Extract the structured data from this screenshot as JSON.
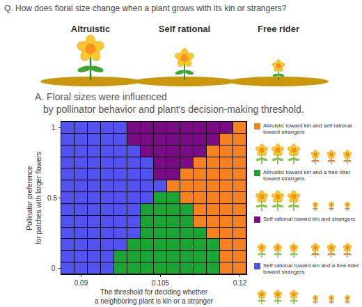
{
  "question": "Q. How does floral size change when a plant grows with its kin or strangers?",
  "behaviors": [
    "Altruistic",
    "Self rational",
    "Free rider"
  ],
  "chart_data": {
    "type": "heatmap",
    "title": "A. Floral sizes were influenced\nby pollinator behavior and plant's decision-making threshold.",
    "x_label": "The threshold for deciding whether\na neighboring plant is kin or a stranger",
    "y_label": "Pollinator preference\nfor patches with larger flowers",
    "x": [
      0.0875,
      0.09,
      0.0925,
      0.095,
      0.0975,
      0.1,
      0.1025,
      0.105,
      0.1075,
      0.11,
      0.1125,
      0.115,
      0.1175,
      0.12
    ],
    "y": [
      0,
      0.0833,
      0.1667,
      0.25,
      0.3333,
      0.4167,
      0.5,
      0.5833,
      0.6667,
      0.75,
      0.8333,
      0.9167,
      1
    ],
    "cells": [
      [
        4,
        4,
        4,
        4,
        2,
        2,
        2,
        2,
        2,
        2,
        2,
        2,
        1,
        1
      ],
      [
        4,
        4,
        4,
        4,
        2,
        2,
        2,
        2,
        2,
        2,
        2,
        2,
        1,
        1
      ],
      [
        4,
        4,
        4,
        4,
        4,
        2,
        2,
        2,
        2,
        2,
        2,
        2,
        1,
        1
      ],
      [
        4,
        4,
        4,
        4,
        4,
        4,
        2,
        2,
        2,
        2,
        2,
        1,
        1,
        1
      ],
      [
        4,
        4,
        4,
        4,
        4,
        4,
        2,
        2,
        2,
        2,
        1,
        1,
        1,
        1
      ],
      [
        4,
        4,
        4,
        4,
        4,
        4,
        2,
        2,
        2,
        2,
        1,
        1,
        1,
        1
      ],
      [
        4,
        4,
        4,
        4,
        4,
        4,
        4,
        2,
        2,
        1,
        1,
        1,
        1,
        1
      ],
      [
        4,
        4,
        4,
        4,
        4,
        4,
        4,
        4,
        1,
        1,
        1,
        1,
        1,
        1
      ],
      [
        4,
        4,
        4,
        4,
        4,
        4,
        4,
        3,
        3,
        1,
        1,
        1,
        1,
        1
      ],
      [
        4,
        4,
        4,
        4,
        4,
        4,
        4,
        3,
        3,
        3,
        1,
        1,
        1,
        1
      ],
      [
        4,
        4,
        4,
        4,
        4,
        4,
        3,
        3,
        3,
        3,
        3,
        1,
        1,
        1
      ],
      [
        4,
        4,
        4,
        4,
        4,
        3,
        3,
        3,
        3,
        3,
        3,
        3,
        1,
        1
      ],
      [
        4,
        4,
        4,
        4,
        4,
        3,
        3,
        3,
        3,
        3,
        3,
        3,
        3,
        1
      ]
    ],
    "xlim": [
      0.08625,
      0.12125
    ],
    "ylim": [
      -0.0417,
      1.0417
    ],
    "xticks": [
      0.09,
      0.105,
      0.12
    ],
    "yticks": [
      {
        "value": 0,
        "label": "0."
      },
      {
        "value": 0.5,
        "label": "0.5"
      },
      {
        "value": 1,
        "label": "1."
      }
    ],
    "grid": false,
    "classes": [
      {
        "value": 1,
        "name": "Altruistic toward kin and self rational toward strangers",
        "color": "#F5821F",
        "kin": "Altruistic",
        "strangers": "Self rational"
      },
      {
        "value": 2,
        "name": "Altruistic toward kin and a free rider toward strangers",
        "color": "#1AA532",
        "kin": "Altruistic",
        "strangers": "Free rider"
      },
      {
        "value": 3,
        "name": "Self rational toward kin and strangers",
        "color": "#7A0A86",
        "kin": "Self rational",
        "strangers": "Self rational"
      },
      {
        "value": 4,
        "name": "Self rational toward kin and a free rider toward strangers",
        "color": "#5252F0",
        "kin": "Self rational",
        "strangers": "Free rider"
      }
    ]
  }
}
